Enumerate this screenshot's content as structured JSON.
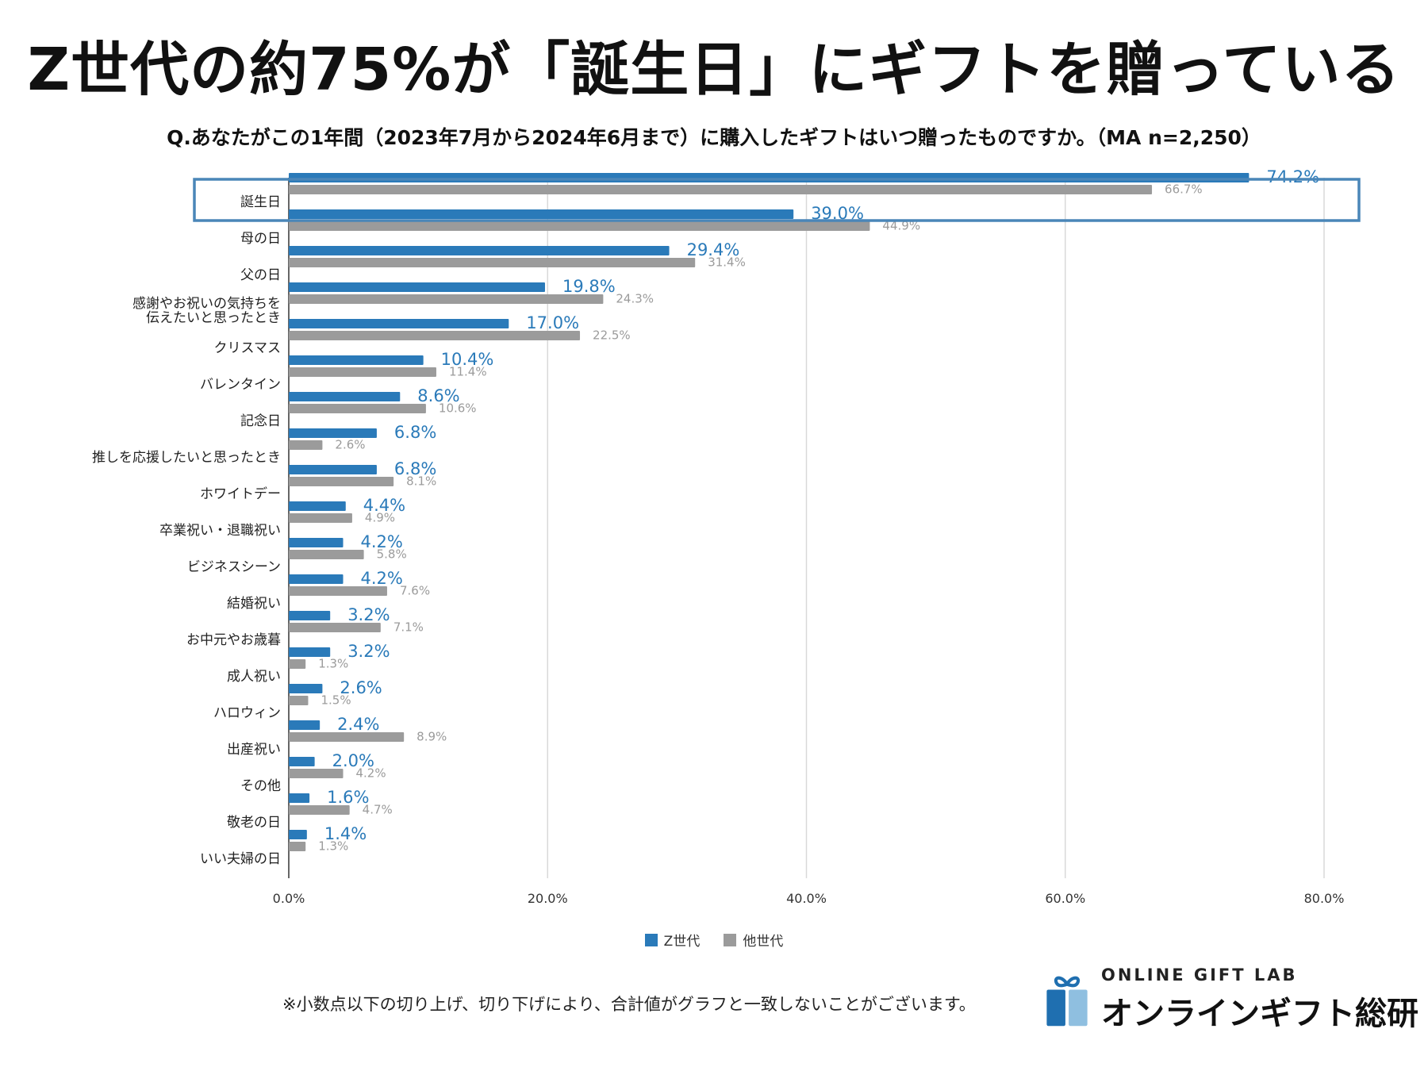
{
  "title": "Z世代の約75%が「誕生日」にギフトを贈っている",
  "question": "Q.あなたがこの1年間（2023年7月から2024年6月まで）に購入したギフトはいつ贈ったものですか。（MA n=2,250）",
  "colors": {
    "gen_z": "#2a7ab9",
    "other": "#9b9b9b",
    "highlight": "#4a86b8",
    "grid": "#d9d9d9"
  },
  "legend": {
    "gen_z": "Z世代",
    "other": "他世代"
  },
  "footnote": "※小数点以下の切り上げ、切り下げにより、合計値がグラフと一致しないことがございます。",
  "logo": {
    "en": "ONLINE GIFT LAB",
    "jp": "オンラインギフト総研",
    "icon": "gift-icon"
  },
  "chart_data": {
    "type": "bar",
    "orientation": "horizontal",
    "categories": [
      "誕生日",
      "母の日",
      "父の日",
      "感謝やお祝いの気持ちを\n伝えたいと思ったとき",
      "クリスマス",
      "バレンタイン",
      "記念日",
      "推しを応援したいと思ったとき",
      "ホワイトデー",
      "卒業祝い・退職祝い",
      "ビジネスシーン",
      "結婚祝い",
      "お中元やお歳暮",
      "成人祝い",
      "ハロウィン",
      "出産祝い",
      "その他",
      "敬老の日",
      "いい夫婦の日"
    ],
    "series": [
      {
        "name": "Z世代",
        "values": [
          74.2,
          39.0,
          29.4,
          19.8,
          17.0,
          10.4,
          8.6,
          6.8,
          6.8,
          4.4,
          4.2,
          4.2,
          3.2,
          3.2,
          2.6,
          2.4,
          2.0,
          1.6,
          1.4
        ]
      },
      {
        "name": "他世代",
        "values": [
          66.7,
          44.9,
          31.4,
          24.3,
          22.5,
          11.4,
          10.6,
          2.6,
          8.1,
          4.9,
          5.8,
          7.6,
          7.1,
          1.3,
          1.5,
          8.9,
          4.2,
          4.7,
          1.3
        ]
      }
    ],
    "xlim": [
      0,
      80
    ],
    "xticks": [
      "0.0%",
      "20.0%",
      "40.0%",
      "60.0%",
      "80.0%"
    ],
    "highlighted_category": "誕生日",
    "grid": true,
    "legend_position": "bottom-center"
  }
}
